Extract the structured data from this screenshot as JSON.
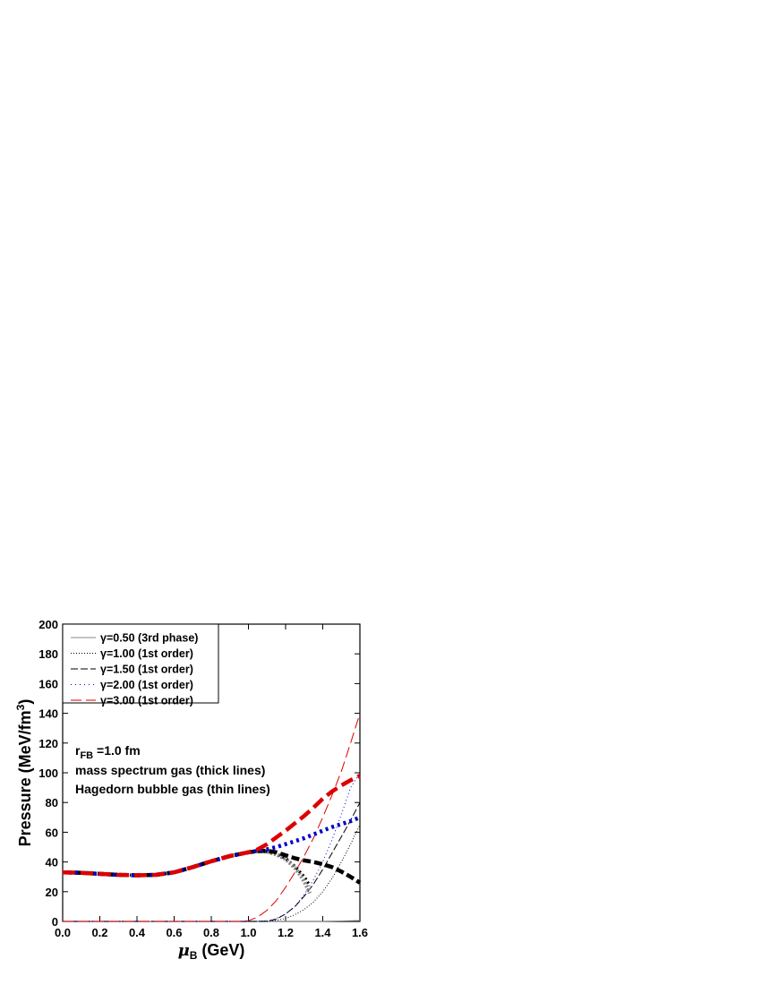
{
  "chart_data": {
    "type": "line",
    "xlabel": "μB (GeV)",
    "ylabel": "Pressure (MeV/fm3)",
    "xlim": [
      0.0,
      1.6
    ],
    "ylim": [
      0,
      200
    ],
    "x_ticks": [
      "0.0",
      "0.2",
      "0.4",
      "0.6",
      "0.8",
      "1.0",
      "1.2",
      "1.4",
      "1.6"
    ],
    "y_ticks": [
      "0",
      "20",
      "40",
      "60",
      "80",
      "100",
      "120",
      "140",
      "160",
      "180",
      "200"
    ],
    "legend_position": "top-left",
    "legend": [
      {
        "label": "γ=0.50 (3rd phase)",
        "color": "#888888",
        "style": "solid"
      },
      {
        "label": "γ=1.00 (1st order)",
        "color": "#000000",
        "style": "dotted"
      },
      {
        "label": "γ=1.50 (1st order)",
        "color": "#000000",
        "style": "dashed"
      },
      {
        "label": "γ=2.00 (1st order)",
        "color": "#0000cc",
        "style": "sparse-dotted"
      },
      {
        "label": "γ=3.00 (1st order)",
        "color": "#dd0000",
        "style": "long-dashed"
      }
    ],
    "annotations": [
      "rFB =1.0 fm",
      "mass spectrum gas (thick lines)",
      "Hagedorn bubble gas (thin lines)"
    ],
    "series": [
      {
        "name": "γ=0.50 (3rd phase)",
        "kind": "mass spectrum gas",
        "color": "#888888",
        "dash": "2,2",
        "width": 4.5,
        "x": [
          0.0,
          0.1,
          0.2,
          0.3,
          0.4,
          0.5,
          0.6,
          0.7,
          0.8,
          0.9,
          1.0,
          1.05,
          1.1,
          1.15,
          1.2,
          1.25,
          1.28,
          1.3,
          1.32,
          1.33
        ],
        "y": [
          33,
          32.7,
          32,
          31.3,
          31,
          31.3,
          33,
          36.5,
          40.5,
          44,
          46.5,
          47.2,
          47,
          45,
          42,
          36,
          31,
          27,
          22,
          19
        ]
      },
      {
        "name": "γ=1.00 (1st order)",
        "kind": "mass spectrum gas",
        "color": "#000000",
        "dash": "2,3",
        "width": 3.5,
        "x": [
          0.0,
          0.1,
          0.2,
          0.3,
          0.4,
          0.5,
          0.6,
          0.7,
          0.8,
          0.9,
          1.0,
          1.05,
          1.1,
          1.15,
          1.2,
          1.25,
          1.3,
          1.33
        ],
        "y": [
          33,
          32.7,
          32,
          31.3,
          31,
          31.3,
          33,
          36.5,
          40.5,
          44,
          46.5,
          47.2,
          47,
          45.5,
          42.5,
          37,
          30,
          24
        ]
      },
      {
        "name": "γ=1.50 (1st order)",
        "kind": "mass spectrum gas",
        "color": "#000000",
        "dash": "9,4",
        "width": 4.5,
        "x": [
          0.0,
          0.1,
          0.2,
          0.3,
          0.4,
          0.5,
          0.6,
          0.7,
          0.8,
          0.9,
          1.0,
          1.05,
          1.1,
          1.15,
          1.2,
          1.25,
          1.3,
          1.35,
          1.4,
          1.45,
          1.5,
          1.55,
          1.6
        ],
        "y": [
          33,
          32.7,
          32,
          31.3,
          31,
          31.3,
          33,
          36.5,
          40.5,
          44,
          46.5,
          47.3,
          47.5,
          46.5,
          44.5,
          42.5,
          41,
          40,
          38.5,
          36.5,
          33.5,
          30,
          26
        ]
      },
      {
        "name": "γ=2.00 (1st order)",
        "kind": "mass spectrum gas",
        "color": "#0000cc",
        "dash": "3,4",
        "width": 4.5,
        "x": [
          0.0,
          0.1,
          0.2,
          0.3,
          0.4,
          0.5,
          0.6,
          0.7,
          0.8,
          0.9,
          1.0,
          1.05,
          1.1,
          1.15,
          1.2,
          1.25,
          1.3,
          1.35,
          1.4,
          1.45,
          1.5,
          1.55,
          1.6
        ],
        "y": [
          33,
          32.7,
          32,
          31.3,
          31,
          31.3,
          33,
          36.5,
          40.5,
          44,
          46.5,
          47.5,
          48.5,
          50,
          52,
          54,
          56,
          58.5,
          61,
          63.5,
          65.5,
          67.5,
          70
        ]
      },
      {
        "name": "γ=3.00 (1st order)",
        "kind": "mass spectrum gas",
        "color": "#dd0000",
        "dash": "14,6",
        "width": 4.5,
        "x": [
          0.0,
          0.1,
          0.2,
          0.3,
          0.4,
          0.5,
          0.6,
          0.7,
          0.8,
          0.9,
          1.0,
          1.05,
          1.1,
          1.15,
          1.2,
          1.25,
          1.3,
          1.35,
          1.4,
          1.45,
          1.5,
          1.55,
          1.6
        ],
        "y": [
          33,
          32.7,
          32,
          31.3,
          31,
          31.3,
          33,
          36.5,
          40.5,
          44,
          46.5,
          48.5,
          52,
          56.5,
          61,
          66,
          71,
          76.5,
          82.5,
          87.5,
          91.5,
          95,
          98
        ]
      },
      {
        "name": "γ=0.50 (3rd phase)",
        "kind": "Hagedorn bubble gas",
        "color": "#888888",
        "dash": "",
        "width": 1,
        "x": [
          0.0,
          0.9,
          1.0,
          1.1,
          1.2,
          1.3,
          1.4,
          1.5,
          1.6
        ],
        "y": [
          0,
          0,
          0,
          0,
          0,
          0,
          0,
          0.3,
          0.6
        ]
      },
      {
        "name": "γ=1.00 (1st order)",
        "kind": "Hagedorn bubble gas",
        "color": "#000000",
        "dash": "1,2",
        "width": 1,
        "x": [
          0.0,
          1.0,
          1.05,
          1.1,
          1.15,
          1.2,
          1.25,
          1.3,
          1.35,
          1.4,
          1.45,
          1.5,
          1.55,
          1.6
        ],
        "y": [
          0,
          0,
          0.1,
          0.3,
          0.8,
          2,
          4.5,
          8,
          13,
          20,
          29,
          40,
          52,
          65
        ]
      },
      {
        "name": "γ=1.50 (1st order)",
        "kind": "Hagedorn bubble gas",
        "color": "#000000",
        "dash": "8,3",
        "width": 1,
        "x": [
          0.0,
          1.05,
          1.1,
          1.15,
          1.2,
          1.25,
          1.3,
          1.35,
          1.4,
          1.45,
          1.5,
          1.55,
          1.6
        ],
        "y": [
          0,
          0,
          0.2,
          1.5,
          5,
          10,
          17,
          25,
          35,
          46,
          57,
          68,
          80
        ]
      },
      {
        "name": "γ=2.00 (1st order)",
        "kind": "Hagedorn bubble gas",
        "color": "#0000cc",
        "dash": "1,3",
        "width": 1,
        "x": [
          0.0,
          1.1,
          1.15,
          1.2,
          1.25,
          1.3,
          1.35,
          1.4,
          1.45,
          1.5,
          1.55,
          1.6
        ],
        "y": [
          0,
          0,
          2,
          5,
          10,
          18,
          28,
          40,
          55,
          72,
          90,
          100
        ]
      },
      {
        "name": "γ=3.00 (1st order)",
        "kind": "Hagedorn bubble gas",
        "color": "#dd0000",
        "dash": "12,5",
        "width": 1,
        "x": [
          0.0,
          0.95,
          1.0,
          1.05,
          1.1,
          1.15,
          1.2,
          1.25,
          1.3,
          1.35,
          1.4,
          1.45,
          1.5,
          1.55,
          1.6
        ],
        "y": [
          0,
          0,
          0.5,
          3,
          7.5,
          14,
          23,
          33,
          44,
          56,
          70,
          85,
          101,
          120,
          140
        ]
      }
    ]
  }
}
